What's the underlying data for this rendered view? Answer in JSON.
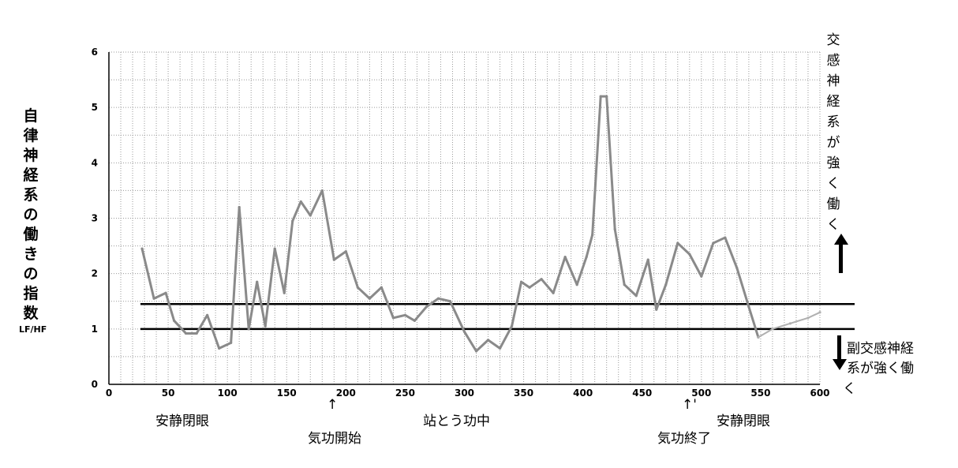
{
  "chart_data": {
    "type": "line",
    "title": "",
    "xlabel": "",
    "ylabel": "自律神経系の働きの指数",
    "ylabel_unit": "LF/HF",
    "x_ticks": [
      "0",
      "50",
      "100",
      "150",
      "200",
      "250",
      "300",
      "350",
      "400",
      "450",
      "500",
      "550",
      "600"
    ],
    "y_ticks": [
      "0",
      "1",
      "2",
      "3",
      "4",
      "5",
      "6"
    ],
    "xlim": [
      0,
      600
    ],
    "ylim": [
      0,
      6
    ],
    "grid": true,
    "reference_lines": [
      1.0,
      1.45
    ],
    "series": [
      {
        "color": "#8a8a8a",
        "x": [
          28,
          38,
          48,
          55,
          65,
          74,
          83,
          93,
          103,
          110,
          118,
          125,
          132,
          140,
          148,
          155,
          162,
          170,
          180,
          190,
          200,
          210,
          220,
          230,
          240,
          250,
          258,
          268,
          278,
          288,
          300,
          310,
          320,
          330,
          340,
          348,
          355,
          365,
          375,
          385,
          395,
          403,
          408,
          415,
          420,
          427,
          435,
          445,
          455,
          462,
          470,
          480,
          490,
          500,
          510,
          520,
          530,
          540,
          548
        ],
        "y": [
          2.45,
          1.55,
          1.65,
          1.15,
          0.92,
          0.92,
          1.25,
          0.65,
          0.75,
          3.2,
          1.0,
          1.85,
          1.05,
          2.45,
          1.65,
          2.95,
          3.3,
          3.05,
          3.5,
          2.25,
          2.4,
          1.75,
          1.55,
          1.75,
          1.2,
          1.25,
          1.15,
          1.4,
          1.55,
          1.5,
          0.95,
          0.6,
          0.8,
          0.65,
          1.05,
          1.85,
          1.75,
          1.9,
          1.65,
          2.3,
          1.8,
          2.3,
          2.7,
          5.2,
          5.2,
          2.8,
          1.8,
          1.6,
          2.25,
          1.35,
          1.8,
          2.55,
          2.35,
          1.95,
          2.55,
          2.65,
          2.1,
          1.4,
          0.85
        ]
      },
      {
        "color": "#b0b0b0",
        "x": [
          548,
          560,
          575,
          590,
          600
        ],
        "y": [
          0.85,
          1.0,
          1.1,
          1.2,
          1.3
        ]
      }
    ]
  },
  "labels": {
    "right_top": "交感神経系が強く働く",
    "right_bottom_line1": "副交感神経",
    "right_bottom_line2": "系が強く働",
    "right_bottom_char": "く",
    "rest_1": "安静閉眼",
    "qigong_start": "気功開始",
    "standing_qigong": "站とう功中",
    "qigong_end": "気功終了",
    "rest_2": "安静閉眼",
    "arrow_glyph": "↑",
    "end_marker": "↑'"
  }
}
